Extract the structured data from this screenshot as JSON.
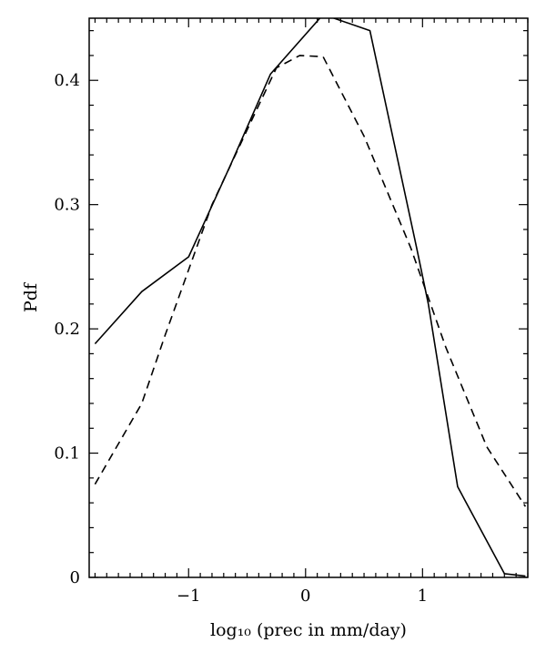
{
  "chart_data": {
    "type": "line",
    "title": "",
    "xlabel": "log₁₀ (prec in mm/day)",
    "ylabel": "Pdf",
    "xlim": [
      -1.85,
      1.9
    ],
    "ylim": [
      0,
      0.45
    ],
    "grid": false,
    "legend": "none",
    "x_ticks": [
      {
        "value": -1,
        "label": "−1"
      },
      {
        "value": 0,
        "label": "0"
      },
      {
        "value": 1,
        "label": "1"
      }
    ],
    "y_ticks": [
      {
        "value": 0,
        "label": "0"
      },
      {
        "value": 0.1,
        "label": "0.1"
      },
      {
        "value": 0.2,
        "label": "0.2"
      },
      {
        "value": 0.3,
        "label": "0.3"
      },
      {
        "value": 0.4,
        "label": "0.4"
      }
    ],
    "series": [
      {
        "style": "solid",
        "color": "#000000",
        "x": [
          -1.8,
          -1.4,
          -1.0,
          -0.65,
          -0.3,
          0.15,
          0.55,
          0.95,
          1.05,
          1.3,
          1.7,
          1.88
        ],
        "y": [
          0.188,
          0.23,
          0.258,
          0.33,
          0.405,
          0.453,
          0.44,
          0.265,
          0.22,
          0.073,
          0.003,
          0.001
        ]
      },
      {
        "style": "dashed",
        "color": "#000000",
        "x": [
          -1.8,
          -1.4,
          -1.2,
          -0.8,
          -0.5,
          -0.25,
          -0.05,
          0.15,
          0.5,
          0.9,
          1.2,
          1.55,
          1.88
        ],
        "y": [
          0.075,
          0.14,
          0.195,
          0.3,
          0.36,
          0.41,
          0.42,
          0.419,
          0.355,
          0.265,
          0.185,
          0.105,
          0.057
        ]
      }
    ]
  }
}
